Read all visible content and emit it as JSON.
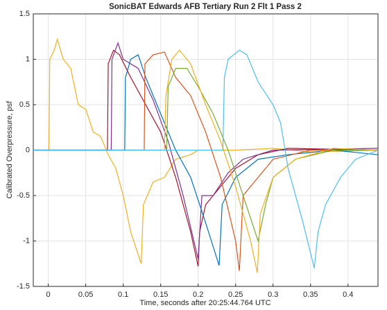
{
  "chart_data": {
    "type": "line",
    "title": "SonicBAT Edwards AFB Tertiary Run 2 Flt 1 Pass 2",
    "x_label": "Time, seconds after 20:25:44.764 UTC",
    "y_label": "Calibrated Overpressure, psf",
    "xlim": [
      -0.02,
      0.44
    ],
    "ylim": [
      -1.5,
      1.5
    ],
    "xticks": [
      0,
      0.05,
      0.1,
      0.15,
      0.2,
      0.25,
      0.3,
      0.35,
      0.4
    ],
    "yticks": [
      -1.5,
      -1,
      -0.5,
      0,
      0.5,
      1,
      1.5
    ],
    "grid": true,
    "series": [
      {
        "color": "#EDB120",
        "x": [
          -0.02,
          0.001,
          0.002,
          0.008,
          0.012,
          0.02,
          0.03,
          0.04,
          0.05,
          0.06,
          0.07,
          0.08,
          0.09,
          0.1,
          0.11,
          0.124,
          0.127,
          0.14,
          0.155,
          0.17,
          0.19,
          0.2,
          0.25,
          0.3,
          0.35,
          0.44
        ],
        "values": [
          0,
          0,
          1.0,
          1.1,
          1.22,
          1.0,
          0.9,
          0.5,
          0.45,
          0.2,
          0.15,
          -0.05,
          -0.2,
          -0.5,
          -0.9,
          -1.25,
          -0.6,
          -0.35,
          -0.3,
          -0.1,
          -0.05,
          0,
          0,
          0.02,
          -0.02,
          0
        ]
      },
      {
        "color": "#A2142F",
        "x": [
          -0.02,
          0.079,
          0.08,
          0.087,
          0.095,
          0.11,
          0.13,
          0.15,
          0.17,
          0.19,
          0.2,
          0.202,
          0.21,
          0.23,
          0.25,
          0.28,
          0.32,
          0.44
        ],
        "values": [
          0,
          0,
          0.95,
          1.1,
          1.05,
          0.8,
          0.5,
          0.2,
          -0.3,
          -0.9,
          -1.28,
          -0.9,
          -0.6,
          -0.4,
          -0.2,
          -0.05,
          0.02,
          0
        ]
      },
      {
        "color": "#7E2F8E",
        "x": [
          -0.02,
          0.084,
          0.085,
          0.093,
          0.1,
          0.12,
          0.14,
          0.16,
          0.18,
          0.2,
          0.205,
          0.22,
          0.24,
          0.26,
          0.3,
          0.44
        ],
        "values": [
          0,
          0,
          1.0,
          1.18,
          1.0,
          0.9,
          0.55,
          0.1,
          -0.5,
          -1.2,
          -0.5,
          -0.5,
          -0.25,
          -0.1,
          0,
          0.02
        ]
      },
      {
        "color": "#0072BD",
        "x": [
          -0.02,
          0.102,
          0.103,
          0.11,
          0.12,
          0.13,
          0.15,
          0.17,
          0.19,
          0.21,
          0.228,
          0.232,
          0.25,
          0.28,
          0.32,
          0.38,
          0.44
        ],
        "values": [
          0,
          0,
          0.8,
          1.0,
          1.05,
          0.8,
          0.4,
          0,
          -0.3,
          -0.8,
          -1.27,
          -0.6,
          -0.3,
          -0.1,
          -0.05,
          0,
          -0.05
        ]
      },
      {
        "color": "#D95319",
        "x": [
          -0.02,
          0.128,
          0.129,
          0.14,
          0.155,
          0.17,
          0.19,
          0.21,
          0.23,
          0.25,
          0.255,
          0.26,
          0.28,
          0.3,
          0.35,
          0.44
        ],
        "values": [
          0,
          0,
          0.95,
          1.05,
          1.08,
          0.8,
          0.6,
          0.2,
          -0.3,
          -1.0,
          -1.33,
          -0.5,
          -0.3,
          -0.1,
          0,
          0
        ]
      },
      {
        "color": "#77AC30",
        "x": [
          -0.02,
          0.158,
          0.16,
          0.17,
          0.185,
          0.2,
          0.22,
          0.24,
          0.26,
          0.28,
          0.29,
          0.3,
          0.33,
          0.38,
          0.44
        ],
        "values": [
          0,
          0,
          0.7,
          0.9,
          0.9,
          0.7,
          0.4,
          0,
          -0.5,
          -1.0,
          -0.6,
          -0.3,
          -0.1,
          0,
          0
        ]
      },
      {
        "color": "#EDB120",
        "x": [
          -0.02,
          0.155,
          0.157,
          0.165,
          0.175,
          0.19,
          0.21,
          0.23,
          0.25,
          0.27,
          0.279,
          0.283,
          0.3,
          0.33,
          0.38,
          0.44
        ],
        "values": [
          0,
          0,
          0.6,
          1.0,
          1.1,
          0.95,
          0.5,
          0.1,
          -0.4,
          -1.0,
          -1.35,
          -0.7,
          -0.3,
          -0.1,
          0.02,
          0
        ]
      },
      {
        "color": "#4DBEEE",
        "x": [
          -0.02,
          0.233,
          0.235,
          0.24,
          0.255,
          0.265,
          0.28,
          0.3,
          0.31,
          0.32,
          0.34,
          0.355,
          0.36,
          0.37,
          0.39,
          0.41,
          0.44
        ],
        "values": [
          0,
          0,
          0.8,
          1.0,
          1.1,
          1.05,
          0.75,
          0.5,
          0.3,
          -0.2,
          -0.8,
          -1.3,
          -0.9,
          -0.6,
          -0.3,
          -0.1,
          0
        ]
      }
    ]
  }
}
